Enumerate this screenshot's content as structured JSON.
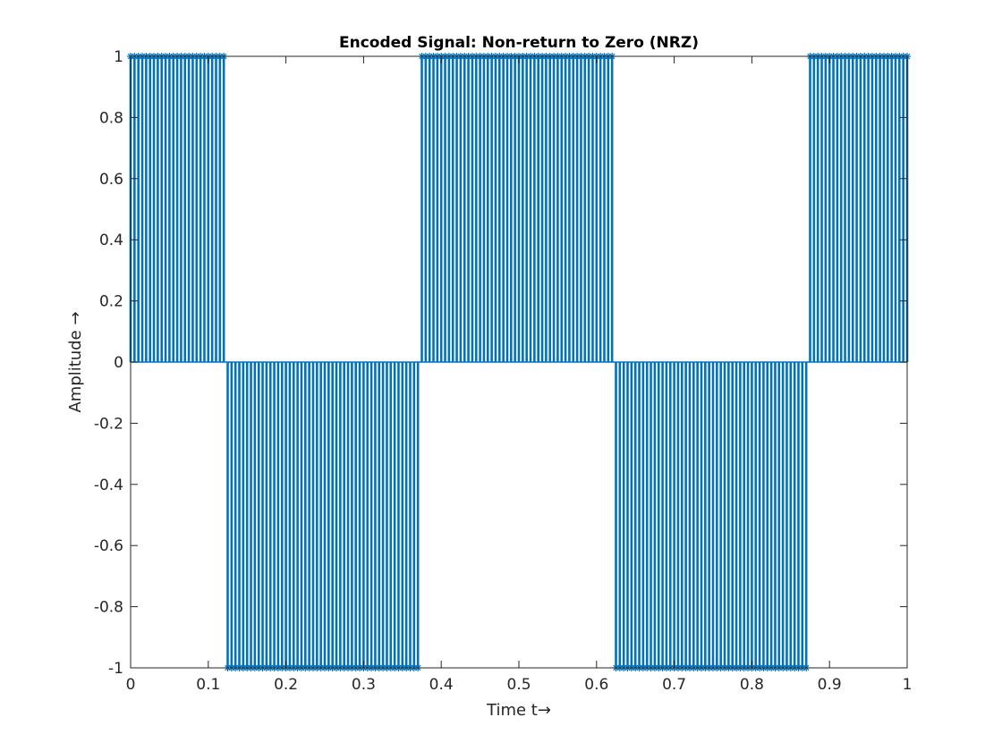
{
  "chart_data": {
    "type": "stem",
    "title": "Encoded Signal: Non-return to Zero (NRZ)",
    "xlabel": "Time t→",
    "ylabel": "Amplitude →",
    "xlim": [
      0,
      1
    ],
    "ylim": [
      -1,
      1
    ],
    "x_ticks": [
      "0",
      "0.1",
      "0.2",
      "0.3",
      "0.4",
      "0.5",
      "0.6",
      "0.7",
      "0.8",
      "0.9",
      "1"
    ],
    "y_ticks": [
      "-1",
      "-0.8",
      "-0.6",
      "-0.4",
      "-0.2",
      "0",
      "0.2",
      "0.4",
      "0.6",
      "0.8",
      "1"
    ],
    "x_tick_values": [
      0,
      0.1,
      0.2,
      0.3,
      0.4,
      0.5,
      0.6,
      0.7,
      0.8,
      0.9,
      1
    ],
    "y_tick_values": [
      -1,
      -0.8,
      -0.6,
      -0.4,
      -0.2,
      0,
      0.2,
      0.4,
      0.6,
      0.8,
      1
    ],
    "sample_step": 0.005,
    "bit_duration": 0.125,
    "bits": [
      1,
      -1,
      -1,
      1,
      1,
      -1,
      -1,
      1
    ],
    "color": "#0072BD",
    "marker": "asterisk",
    "grid": false,
    "legend": "none"
  }
}
